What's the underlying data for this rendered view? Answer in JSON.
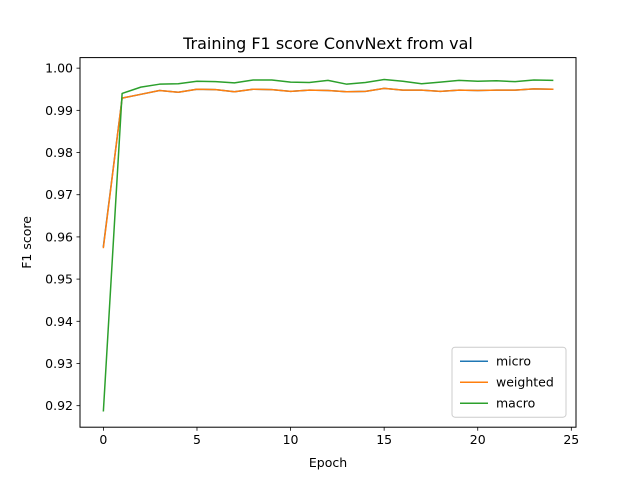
{
  "chart_data": {
    "type": "line",
    "title": "Training F1 score ConvNext from val",
    "xlabel": "Epoch",
    "ylabel": "F1 score",
    "xlim": [
      -1.25,
      25.25
    ],
    "ylim": [
      0.9149,
      1.0025
    ],
    "x_ticks": [
      0,
      5,
      10,
      15,
      20,
      25
    ],
    "y_ticks": [
      0.92,
      0.93,
      0.94,
      0.95,
      0.96,
      0.97,
      0.98,
      0.99,
      1.0
    ],
    "y_tick_labels": [
      "0.92",
      "0.93",
      "0.94",
      "0.95",
      "0.96",
      "0.97",
      "0.98",
      "0.99",
      "1.00"
    ],
    "grid": false,
    "legend_position": "lower-right",
    "x": [
      0,
      1,
      2,
      3,
      4,
      5,
      6,
      7,
      8,
      9,
      10,
      11,
      12,
      13,
      14,
      15,
      16,
      17,
      18,
      19,
      20,
      21,
      22,
      23,
      24
    ],
    "series": [
      {
        "name": "micro",
        "color": "#1f77b4",
        "values": [
          0.9578,
          0.9929,
          0.9938,
          0.9947,
          0.9943,
          0.995,
          0.9949,
          0.9944,
          0.995,
          0.9949,
          0.9945,
          0.9948,
          0.9947,
          0.9944,
          0.9945,
          0.9952,
          0.9948,
          0.9948,
          0.9945,
          0.9948,
          0.9947,
          0.9948,
          0.9948,
          0.9951,
          0.995
        ]
      },
      {
        "name": "weighted",
        "color": "#ff7f0e",
        "values": [
          0.9575,
          0.9929,
          0.9938,
          0.9947,
          0.9943,
          0.995,
          0.9949,
          0.9944,
          0.995,
          0.9949,
          0.9945,
          0.9948,
          0.9947,
          0.9944,
          0.9945,
          0.9952,
          0.9948,
          0.9948,
          0.9945,
          0.9948,
          0.9947,
          0.9948,
          0.9948,
          0.9951,
          0.995
        ]
      },
      {
        "name": "macro",
        "color": "#2ca02c",
        "values": [
          0.9188,
          0.994,
          0.9955,
          0.9962,
          0.9963,
          0.9969,
          0.9968,
          0.9965,
          0.9972,
          0.9972,
          0.9967,
          0.9966,
          0.9971,
          0.9962,
          0.9966,
          0.9973,
          0.9969,
          0.9963,
          0.9967,
          0.9971,
          0.9969,
          0.997,
          0.9968,
          0.9972,
          0.9971
        ]
      }
    ]
  }
}
